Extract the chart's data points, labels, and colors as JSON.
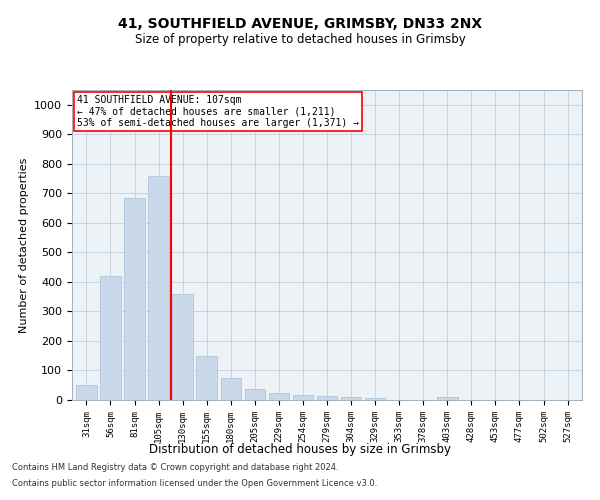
{
  "title_line1": "41, SOUTHFIELD AVENUE, GRIMSBY, DN33 2NX",
  "title_line2": "Size of property relative to detached houses in Grimsby",
  "xlabel": "Distribution of detached houses by size in Grimsby",
  "ylabel": "Number of detached properties",
  "bar_color": "#c9d9ea",
  "bar_edgecolor": "#a8c0d8",
  "categories": [
    "31sqm",
    "56sqm",
    "81sqm",
    "105sqm",
    "130sqm",
    "155sqm",
    "180sqm",
    "205sqm",
    "229sqm",
    "254sqm",
    "279sqm",
    "304sqm",
    "329sqm",
    "353sqm",
    "378sqm",
    "403sqm",
    "428sqm",
    "453sqm",
    "477sqm",
    "502sqm",
    "527sqm"
  ],
  "values": [
    50,
    420,
    685,
    760,
    360,
    150,
    73,
    38,
    25,
    18,
    13,
    10,
    8,
    0,
    0,
    10,
    0,
    0,
    0,
    0,
    0
  ],
  "red_line_x": 3.5,
  "annotation_title": "41 SOUTHFIELD AVENUE: 107sqm",
  "annotation_line1": "← 47% of detached houses are smaller (1,211)",
  "annotation_line2": "53% of semi-detached houses are larger (1,371) →",
  "footnote1": "Contains HM Land Registry data © Crown copyright and database right 2024.",
  "footnote2": "Contains public sector information licensed under the Open Government Licence v3.0.",
  "background_color": "#edf2f7",
  "ylim": [
    0,
    1050
  ],
  "yticks": [
    0,
    100,
    200,
    300,
    400,
    500,
    600,
    700,
    800,
    900,
    1000
  ]
}
